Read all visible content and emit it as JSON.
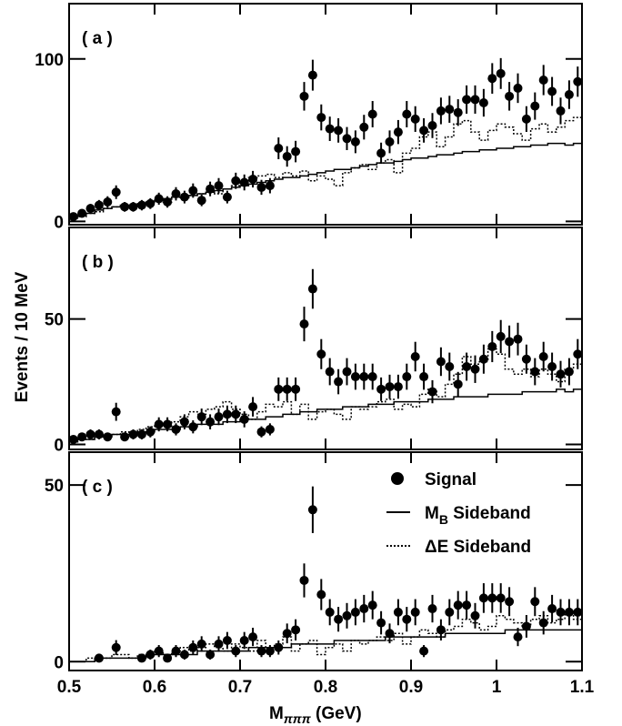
{
  "chart_data": [
    {
      "type": "histogram",
      "label": "( a )",
      "bins": [
        0.5,
        0.51,
        0.52,
        0.53,
        0.54,
        0.55,
        0.56,
        0.57,
        0.58,
        0.59,
        0.6,
        0.61,
        0.62,
        0.63,
        0.64,
        0.65,
        0.66,
        0.67,
        0.68,
        0.69,
        0.7,
        0.71,
        0.72,
        0.73,
        0.74,
        0.75,
        0.76,
        0.77,
        0.78,
        0.79,
        0.8,
        0.81,
        0.82,
        0.83,
        0.84,
        0.85,
        0.86,
        0.87,
        0.88,
        0.89,
        0.9,
        0.91,
        0.92,
        0.93,
        0.94,
        0.95,
        0.96,
        0.97,
        0.98,
        0.99,
        1.0,
        1.01,
        1.02,
        1.03,
        1.04,
        1.05,
        1.06,
        1.07,
        1.08,
        1.09,
        1.1
      ],
      "xlim": [
        0.5,
        1.1
      ],
      "xticks": [
        0.5,
        0.6,
        0.7,
        0.8,
        0.9,
        1,
        1.1
      ],
      "ylim": [
        -2,
        134
      ],
      "yticks": [
        0,
        100
      ],
      "series": [
        {
          "style": "points",
          "color": "#000000",
          "values": [
            3,
            5,
            8,
            10,
            12,
            18,
            9,
            9,
            10,
            11,
            14,
            12,
            17,
            15,
            19,
            13,
            20,
            22,
            15,
            25,
            24,
            26,
            21,
            22,
            45,
            40,
            43,
            77,
            90,
            64,
            57,
            56,
            51,
            49,
            58,
            66,
            42,
            49,
            55,
            66,
            63,
            56,
            59,
            68,
            69,
            67,
            75,
            75,
            73,
            88,
            91,
            77,
            82,
            63,
            71,
            87,
            80,
            68,
            78,
            86
          ],
          "errors": [
            1.7,
            2.2,
            2.8,
            3.2,
            3.5,
            4.2,
            3,
            3,
            3.2,
            3.3,
            3.7,
            3.5,
            4.1,
            3.9,
            4.4,
            3.6,
            4.5,
            4.7,
            3.9,
            5,
            4.9,
            5.1,
            4.6,
            4.7,
            6.7,
            6.3,
            6.6,
            8.8,
            9.5,
            8,
            7.5,
            7.5,
            7.1,
            7,
            7.6,
            8.1,
            6.5,
            7,
            7.4,
            8.1,
            7.9,
            7.5,
            7.7,
            8.2,
            8.3,
            8.2,
            8.7,
            8.7,
            8.5,
            9.4,
            9.5,
            8.8,
            9.1,
            7.9,
            8.4,
            9.3,
            8.9,
            8.2,
            8.8,
            9.3
          ]
        },
        {
          "style": "step",
          "color": "#000000",
          "values": [
            3,
            4,
            5,
            7,
            8,
            9,
            10,
            10,
            11,
            12,
            13,
            14,
            15,
            15,
            16,
            17,
            18,
            19,
            20,
            21,
            22,
            23,
            24,
            25,
            26,
            27,
            27,
            28,
            29,
            30,
            31,
            32,
            32,
            33,
            34,
            35,
            36,
            36,
            37,
            38,
            39,
            39,
            40,
            41,
            41,
            42,
            43,
            43,
            44,
            44,
            45,
            45,
            46,
            46,
            47,
            47,
            48,
            48,
            47,
            48
          ]
        },
        {
          "style": "dotted-step",
          "color": "#000000",
          "values": [
            2,
            3,
            5,
            6,
            8,
            9,
            10,
            9,
            11,
            12,
            13,
            12,
            15,
            14,
            16,
            17,
            18,
            17,
            20,
            22,
            24,
            27,
            28,
            29,
            27,
            30,
            28,
            31,
            25,
            28,
            26,
            22,
            30,
            33,
            35,
            32,
            36,
            38,
            30,
            42,
            45,
            52,
            55,
            46,
            52,
            60,
            62,
            55,
            50,
            56,
            60,
            58,
            54,
            50,
            57,
            60,
            55,
            58,
            62,
            64
          ]
        }
      ]
    },
    {
      "type": "histogram",
      "label": "( b )",
      "ylabel": "Events / 10 MeV",
      "bins": [
        0.5,
        0.51,
        0.52,
        0.53,
        0.54,
        0.55,
        0.56,
        0.57,
        0.58,
        0.59,
        0.6,
        0.61,
        0.62,
        0.63,
        0.64,
        0.65,
        0.66,
        0.67,
        0.68,
        0.69,
        0.7,
        0.71,
        0.72,
        0.73,
        0.74,
        0.75,
        0.76,
        0.77,
        0.78,
        0.79,
        0.8,
        0.81,
        0.82,
        0.83,
        0.84,
        0.85,
        0.86,
        0.87,
        0.88,
        0.89,
        0.9,
        0.91,
        0.92,
        0.93,
        0.94,
        0.95,
        0.96,
        0.97,
        0.98,
        0.99,
        1.0,
        1.01,
        1.02,
        1.03,
        1.04,
        1.05,
        1.06,
        1.07,
        1.08,
        1.09,
        1.1
      ],
      "xlim": [
        0.5,
        1.1
      ],
      "xticks": [
        0.5,
        0.6,
        0.7,
        0.8,
        0.9,
        1,
        1.1
      ],
      "ylim": [
        -2,
        86.5
      ],
      "yticks": [
        0,
        50
      ],
      "series": [
        {
          "style": "points",
          "color": "#000000",
          "values": [
            2,
            3,
            4,
            4,
            3,
            13,
            3,
            4,
            4,
            5,
            8,
            8,
            6,
            9,
            7,
            11,
            9,
            11,
            12,
            12,
            10,
            15,
            5,
            6,
            22,
            22,
            22,
            48,
            62,
            36,
            29,
            25,
            29,
            27,
            27,
            27,
            22,
            23,
            23,
            27,
            35,
            27,
            21,
            33,
            31,
            24,
            31,
            30,
            34,
            39,
            43,
            41,
            42,
            34,
            29,
            35,
            31,
            28,
            29,
            36
          ],
          "errors": [
            1.4,
            1.7,
            2,
            2,
            1.7,
            3.6,
            1.7,
            2,
            2,
            2.2,
            2.8,
            2.8,
            2.4,
            3,
            2.6,
            3.3,
            3,
            3.3,
            3.5,
            3.5,
            3.2,
            3.9,
            2.2,
            2.4,
            4.7,
            4.7,
            4.7,
            6.9,
            7.9,
            6,
            5.4,
            5,
            5.4,
            5.2,
            5.2,
            5.2,
            4.7,
            4.8,
            4.8,
            5.2,
            5.9,
            5.2,
            4.6,
            5.7,
            5.6,
            4.9,
            5.6,
            5.5,
            5.8,
            6.2,
            6.6,
            6.4,
            6.5,
            5.8,
            5.4,
            5.9,
            5.6,
            5.3,
            5.4,
            6
          ]
        },
        {
          "style": "step",
          "color": "#000000",
          "values": [
            1,
            2,
            2,
            3,
            3,
            4,
            4,
            4,
            5,
            5,
            6,
            6,
            6,
            7,
            7,
            8,
            8,
            8,
            9,
            9,
            10,
            10,
            10,
            11,
            11,
            12,
            12,
            13,
            13,
            14,
            14,
            14,
            15,
            15,
            15,
            16,
            16,
            16,
            17,
            17,
            17,
            17,
            18,
            18,
            18,
            19,
            19,
            19,
            19,
            20,
            20,
            20,
            20,
            21,
            21,
            21,
            21,
            22,
            21,
            22
          ]
        },
        {
          "style": "dotted-step",
          "color": "#000000",
          "values": [
            1,
            2,
            2,
            3,
            4,
            4,
            5,
            4,
            6,
            7,
            8,
            7,
            9,
            11,
            13,
            12,
            14,
            15,
            17,
            14,
            12,
            10,
            13,
            16,
            15,
            17,
            12,
            16,
            10,
            13,
            14,
            12,
            10,
            15,
            14,
            15,
            17,
            18,
            14,
            16,
            15,
            20,
            22,
            19,
            24,
            28,
            35,
            32,
            33,
            38,
            36,
            30,
            28,
            30,
            27,
            30,
            28,
            25,
            30,
            32
          ]
        }
      ]
    },
    {
      "type": "histogram",
      "label": "( c )",
      "xlabel_parts": [
        "M",
        "πππ",
        " (GeV)"
      ],
      "legend": "upper right",
      "bins": [
        0.5,
        0.51,
        0.52,
        0.53,
        0.54,
        0.55,
        0.56,
        0.57,
        0.58,
        0.59,
        0.6,
        0.61,
        0.62,
        0.63,
        0.64,
        0.65,
        0.66,
        0.67,
        0.68,
        0.69,
        0.7,
        0.71,
        0.72,
        0.73,
        0.74,
        0.75,
        0.76,
        0.77,
        0.78,
        0.79,
        0.8,
        0.81,
        0.82,
        0.83,
        0.84,
        0.85,
        0.86,
        0.87,
        0.88,
        0.89,
        0.9,
        0.91,
        0.92,
        0.93,
        0.94,
        0.95,
        0.96,
        0.97,
        0.98,
        0.99,
        1.0,
        1.01,
        1.02,
        1.03,
        1.04,
        1.05,
        1.06,
        1.07,
        1.08,
        1.09,
        1.1
      ],
      "xlim": [
        0.5,
        1.1
      ],
      "xticks": [
        0.5,
        0.6,
        0.7,
        0.8,
        0.9,
        1,
        1.1
      ],
      "ylim": [
        -2.5,
        59.3
      ],
      "yticks": [
        0,
        50
      ],
      "series": [
        {
          "style": "points",
          "color": "#000000",
          "name_parts": [
            "Signal"
          ],
          "values": [
            null,
            null,
            null,
            1,
            null,
            4,
            null,
            null,
            1,
            2,
            3,
            1,
            3,
            2,
            4,
            5,
            2,
            5,
            6,
            3,
            6,
            7,
            3,
            3,
            4,
            8,
            9,
            23,
            43,
            19,
            14,
            12,
            13,
            14,
            15,
            16,
            11,
            8,
            14,
            12,
            14,
            3,
            15,
            9,
            14,
            16,
            16,
            13,
            18,
            18,
            18,
            17,
            7,
            10,
            17,
            11,
            15,
            14,
            14,
            14
          ],
          "errors": [
            null,
            null,
            null,
            1.2,
            null,
            2.1,
            null,
            null,
            1,
            1.4,
            1.7,
            1,
            1.7,
            1.4,
            2,
            2.2,
            1.4,
            2.2,
            2.4,
            1.7,
            2.4,
            2.6,
            1.7,
            1.7,
            2,
            2.8,
            3,
            4.8,
            6.6,
            4.4,
            3.7,
            3.5,
            3.6,
            3.7,
            3.9,
            4,
            3.3,
            2.8,
            3.7,
            3.5,
            3.7,
            1.7,
            3.9,
            3,
            3.7,
            4,
            4,
            3.6,
            4.2,
            4.2,
            4.2,
            4.1,
            2.6,
            3.2,
            4.1,
            3.3,
            3.9,
            3.7,
            3.7,
            3.7
          ]
        },
        {
          "style": "step",
          "color": "#000000",
          "name_parts": [
            "M",
            "B",
            " Sideband"
          ],
          "values": [
            0,
            0,
            0,
            1,
            1,
            1,
            1,
            1,
            1,
            2,
            2,
            2,
            2,
            2,
            2,
            3,
            3,
            3,
            3,
            3,
            3,
            4,
            4,
            4,
            4,
            4,
            5,
            5,
            5,
            5,
            5,
            6,
            6,
            6,
            6,
            6,
            6,
            7,
            7,
            7,
            7,
            7,
            7,
            7,
            8,
            8,
            8,
            8,
            8,
            8,
            8,
            9,
            9,
            9,
            9,
            9,
            9,
            9,
            9,
            9
          ]
        },
        {
          "style": "dotted-step",
          "color": "#000000",
          "name_parts": [
            "ΔE Sideband"
          ],
          "values": [
            0,
            0,
            1,
            1,
            1,
            2,
            2,
            1,
            2,
            2,
            3,
            2,
            3,
            4,
            3,
            4,
            5,
            4,
            3,
            5,
            4,
            3,
            6,
            4,
            5,
            7,
            3,
            5,
            6,
            2,
            4,
            5,
            3,
            6,
            5,
            6,
            7,
            6,
            8,
            5,
            7,
            9,
            8,
            7,
            9,
            10,
            12,
            11,
            9,
            10,
            13,
            12,
            11,
            10,
            12,
            13,
            11,
            12,
            14,
            12
          ]
        }
      ]
    }
  ]
}
